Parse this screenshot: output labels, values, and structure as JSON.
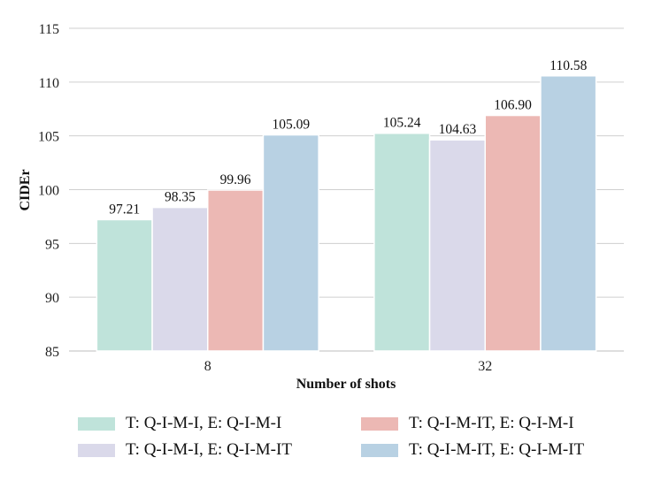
{
  "chart_data": {
    "type": "bar",
    "categories": [
      "8",
      "32"
    ],
    "series": [
      {
        "name": "T: Q-I-M-I, E: Q-I-M-I",
        "values": [
          97.21,
          105.24
        ],
        "labels": [
          "97.21",
          "105.24"
        ],
        "color": "#bfe3da"
      },
      {
        "name": "T: Q-I-M-I, E: Q-I-M-IT",
        "values": [
          98.35,
          104.63
        ],
        "labels": [
          "98.35",
          "104.63"
        ],
        "color": "#dad9ea"
      },
      {
        "name": "T: Q-I-M-IT, E: Q-I-M-I",
        "values": [
          99.96,
          106.9
        ],
        "labels": [
          "99.96",
          "106.90"
        ],
        "color": "#ecb8b4"
      },
      {
        "name": "T: Q-I-M-IT, E: Q-I-M-IT",
        "values": [
          105.09,
          110.58
        ],
        "labels": [
          "105.09",
          "110.58"
        ],
        "color": "#b8d1e3"
      }
    ],
    "xlabel": "Number of shots",
    "ylabel": "CIDEr",
    "ylim": [
      85,
      115
    ],
    "yticks": [
      "85",
      "90",
      "95",
      "100",
      "105",
      "110",
      "115"
    ],
    "grid": true,
    "legend_position": "bottom"
  }
}
